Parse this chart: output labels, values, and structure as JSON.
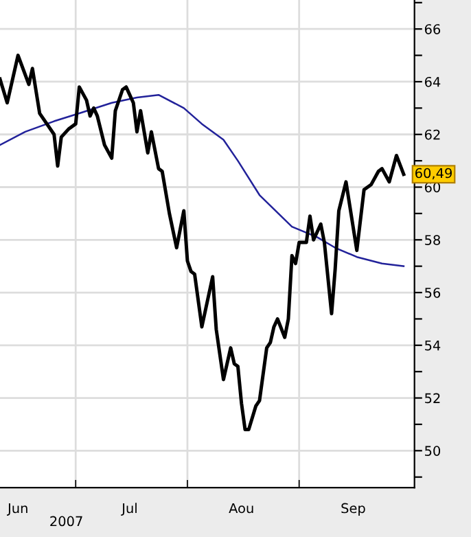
{
  "chart_data": {
    "type": "line",
    "xlabel": "2007",
    "xlim": [
      "2007-06-10",
      "2007-10-03"
    ],
    "xticks": [
      {
        "value": "2007-06-15",
        "label": "Jun"
      },
      {
        "value": "2007-07-01",
        "label": null
      },
      {
        "value": "2007-07-16",
        "label": "Jul"
      },
      {
        "value": "2007-08-01",
        "label": null
      },
      {
        "value": "2007-08-16",
        "label": "Aou"
      },
      {
        "value": "2007-09-01",
        "label": null
      },
      {
        "value": "2007-09-16",
        "label": "Sep"
      }
    ],
    "ylim": [
      48.6,
      67.1
    ],
    "yticks": [
      {
        "value": 49,
        "label": null
      },
      50,
      {
        "value": 51,
        "label": null
      },
      52,
      {
        "value": 53,
        "label": null
      },
      54,
      {
        "value": 55,
        "label": null
      },
      56,
      {
        "value": 57,
        "label": null
      },
      58,
      {
        "value": 59,
        "label": null
      },
      60,
      {
        "value": 61,
        "label": null
      },
      62,
      {
        "value": 63,
        "label": null
      },
      64,
      {
        "value": 65,
        "label": null
      },
      66,
      {
        "value": 67,
        "label": null
      }
    ],
    "grid": true,
    "series": [
      {
        "color": "#000000",
        "x": [
          "2007-06-10",
          "2007-06-12",
          "2007-06-15",
          "2007-06-18",
          "2007-06-19",
          "2007-06-21",
          "2007-06-23",
          "2007-06-25",
          "2007-06-26",
          "2007-06-27",
          "2007-06-29",
          "2007-07-01",
          "2007-07-02",
          "2007-07-04",
          "2007-07-05",
          "2007-07-06",
          "2007-07-07",
          "2007-07-09",
          "2007-07-11",
          "2007-07-12",
          "2007-07-14",
          "2007-07-15",
          "2007-07-17",
          "2007-07-18",
          "2007-07-19",
          "2007-07-21",
          "2007-07-22",
          "2007-07-24",
          "2007-07-25",
          "2007-07-27",
          "2007-07-29",
          "2007-07-31",
          "2007-08-01",
          "2007-08-02",
          "2007-08-03",
          "2007-08-05",
          "2007-08-08",
          "2007-08-09",
          "2007-08-11",
          "2007-08-13",
          "2007-08-14",
          "2007-08-15",
          "2007-08-16",
          "2007-08-17",
          "2007-08-18",
          "2007-08-20",
          "2007-08-21",
          "2007-08-23",
          "2007-08-24",
          "2007-08-25",
          "2007-08-26",
          "2007-08-28",
          "2007-08-29",
          "2007-08-30",
          "2007-08-31",
          "2007-09-01",
          "2007-09-03",
          "2007-09-04",
          "2007-09-05",
          "2007-09-07",
          "2007-09-08",
          "2007-09-10",
          "2007-09-11",
          "2007-09-12",
          "2007-09-14",
          "2007-09-17",
          "2007-09-19",
          "2007-09-21",
          "2007-09-23",
          "2007-09-24",
          "2007-09-26",
          "2007-09-28",
          "2007-09-30"
        ],
        "values": [
          64.1,
          63.2,
          65.0,
          63.9,
          64.5,
          62.8,
          62.4,
          62.0,
          60.8,
          61.9,
          62.2,
          62.4,
          63.8,
          63.3,
          62.7,
          63.0,
          62.7,
          61.6,
          61.1,
          62.9,
          63.7,
          63.8,
          63.2,
          62.1,
          62.9,
          61.3,
          62.1,
          60.7,
          60.6,
          59.0,
          57.7,
          59.1,
          57.2,
          56.8,
          56.7,
          54.7,
          56.6,
          54.6,
          52.7,
          53.9,
          53.3,
          53.2,
          51.8,
          50.8,
          50.8,
          51.7,
          51.9,
          53.9,
          54.1,
          54.7,
          55.0,
          54.3,
          55.0,
          57.4,
          57.1,
          57.9,
          57.9,
          58.9,
          58.0,
          58.6,
          57.9,
          55.2,
          56.9,
          59.1,
          60.2,
          57.6,
          59.9,
          60.1,
          60.6,
          60.7,
          60.2,
          61.2,
          60.49
        ]
      },
      {
        "color": "#22229a",
        "x": [
          "2007-06-10",
          "2007-06-17",
          "2007-06-25",
          "2007-07-02",
          "2007-07-11",
          "2007-07-18",
          "2007-07-24",
          "2007-07-31",
          "2007-08-05",
          "2007-08-11",
          "2007-08-15",
          "2007-08-21",
          "2007-08-30",
          "2007-09-06",
          "2007-09-11",
          "2007-09-17",
          "2007-09-24",
          "2007-09-30"
        ],
        "values": [
          61.6,
          62.1,
          62.5,
          62.8,
          63.2,
          63.4,
          63.5,
          63.0,
          62.4,
          61.8,
          61.0,
          59.7,
          58.5,
          58.1,
          57.7,
          57.35,
          57.1,
          57.0
        ]
      }
    ],
    "annotations": [
      {
        "text": "60,49",
        "x": "2007-09-30",
        "y": 60.49
      }
    ]
  }
}
